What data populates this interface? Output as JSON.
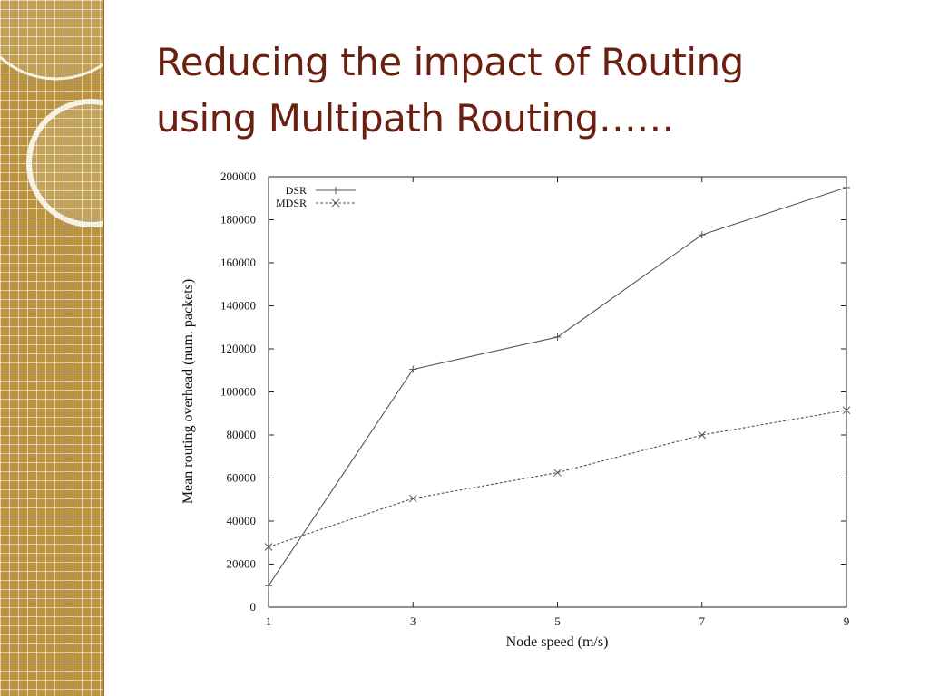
{
  "slide": {
    "title_line1": "Reducing the impact of Routing",
    "title_line2": "using Multipath Routing……",
    "title_color": "#6b1f10",
    "sidebar_color": "#b9933f"
  },
  "chart_data": {
    "type": "line",
    "title": "",
    "xlabel": "Node speed (m/s)",
    "ylabel": "Mean routing overhead (num. packets)",
    "x": [
      1,
      3,
      5,
      7,
      9
    ],
    "xticks": [
      "1",
      "3",
      "5",
      "7",
      "9"
    ],
    "xlim": [
      1,
      9
    ],
    "ylim": [
      0,
      200000
    ],
    "yticks": [
      "0",
      "20000",
      "40000",
      "60000",
      "80000",
      "100000",
      "120000",
      "140000",
      "160000",
      "180000",
      "200000"
    ],
    "grid": false,
    "legend": "top-left",
    "series": [
      {
        "name": "DSR",
        "values": [
          10000,
          110500,
          125500,
          173000,
          195000
        ],
        "marker": "plus",
        "line": "solid",
        "color": "#555555"
      },
      {
        "name": "MDSR",
        "values": [
          28000,
          50500,
          62500,
          80000,
          91500
        ],
        "marker": "cross",
        "line": "dashed",
        "color": "#555555"
      }
    ]
  }
}
